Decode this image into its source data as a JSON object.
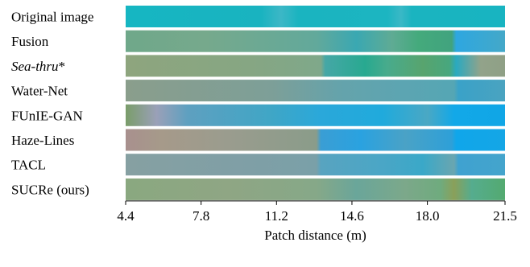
{
  "chart_data": {
    "type": "heatmap",
    "title": "",
    "xlabel": "Patch distance (m)",
    "ylabel": "",
    "xlim": [
      4.4,
      21.5
    ],
    "x_ticks": [
      "4.4",
      "7.8",
      "11.2",
      "14.6",
      "18.0",
      "21.5"
    ],
    "rows": [
      {
        "label": "Original image",
        "italic": false,
        "stops": [
          {
            "x": 4.4,
            "color": "#16b6c2"
          },
          {
            "x": 10.5,
            "color": "#19b3c0"
          },
          {
            "x": 11.4,
            "color": "#3cb7c6"
          },
          {
            "x": 12.2,
            "color": "#1ab4c0"
          },
          {
            "x": 16.2,
            "color": "#1cb5c1"
          },
          {
            "x": 16.8,
            "color": "#3ab8c6"
          },
          {
            "x": 17.3,
            "color": "#1ab4c0"
          },
          {
            "x": 21.5,
            "color": "#18b4c1"
          }
        ]
      },
      {
        "label": "Fusion",
        "italic": false,
        "stops": [
          {
            "x": 4.4,
            "color": "#6fa88a"
          },
          {
            "x": 8.0,
            "color": "#76a98c"
          },
          {
            "x": 13.0,
            "color": "#62a99b"
          },
          {
            "x": 14.8,
            "color": "#3aa8b2"
          },
          {
            "x": 16.4,
            "color": "#5fab94"
          },
          {
            "x": 17.6,
            "color": "#44aa7c"
          },
          {
            "x": 19.1,
            "color": "#41a37e"
          },
          {
            "x": 19.3,
            "color": "#2ea7e0"
          },
          {
            "x": 21.5,
            "color": "#44a8c8"
          }
        ]
      },
      {
        "label": "Sea-thru*",
        "italic": true,
        "stops": [
          {
            "x": 4.4,
            "color": "#8ea57e"
          },
          {
            "x": 10.0,
            "color": "#86a683"
          },
          {
            "x": 13.2,
            "color": "#7fa88a"
          },
          {
            "x": 13.4,
            "color": "#45a7a6"
          },
          {
            "x": 15.2,
            "color": "#28a990"
          },
          {
            "x": 16.2,
            "color": "#48ab8c"
          },
          {
            "x": 17.8,
            "color": "#58a46e"
          },
          {
            "x": 19.0,
            "color": "#47a77e"
          },
          {
            "x": 19.3,
            "color": "#2aa9c0"
          },
          {
            "x": 20.4,
            "color": "#92a38a"
          },
          {
            "x": 21.5,
            "color": "#8fa086"
          }
        ]
      },
      {
        "label": "Water-Net",
        "italic": false,
        "stops": [
          {
            "x": 4.4,
            "color": "#8a9e8c"
          },
          {
            "x": 11.0,
            "color": "#7d9f98"
          },
          {
            "x": 14.0,
            "color": "#65a3ab"
          },
          {
            "x": 17.0,
            "color": "#5ca5b2"
          },
          {
            "x": 19.2,
            "color": "#55a6b4"
          },
          {
            "x": 19.4,
            "color": "#3aa2c8"
          },
          {
            "x": 21.5,
            "color": "#4aa3c0"
          }
        ]
      },
      {
        "label": "FUnIE-GAN",
        "italic": false,
        "stops": [
          {
            "x": 4.4,
            "color": "#7a9d6a"
          },
          {
            "x": 5.8,
            "color": "#9aa0b8"
          },
          {
            "x": 7.2,
            "color": "#5ea0c0"
          },
          {
            "x": 11.0,
            "color": "#3fa6c6"
          },
          {
            "x": 13.2,
            "color": "#2aa8da"
          },
          {
            "x": 16.0,
            "color": "#20aadc"
          },
          {
            "x": 18.0,
            "color": "#4aa8c4"
          },
          {
            "x": 19.2,
            "color": "#12a8e8"
          },
          {
            "x": 21.5,
            "color": "#10a6e6"
          }
        ]
      },
      {
        "label": "Haze-Lines",
        "italic": false,
        "stops": [
          {
            "x": 4.4,
            "color": "#a8908e"
          },
          {
            "x": 6.0,
            "color": "#a69a8a"
          },
          {
            "x": 9.0,
            "color": "#9a9c8e"
          },
          {
            "x": 13.0,
            "color": "#8a9c8a"
          },
          {
            "x": 13.2,
            "color": "#3a9ed4"
          },
          {
            "x": 15.0,
            "color": "#2aa2e0"
          },
          {
            "x": 17.0,
            "color": "#4aa2c6"
          },
          {
            "x": 19.1,
            "color": "#2ea0d8"
          },
          {
            "x": 19.3,
            "color": "#10a6ea"
          },
          {
            "x": 21.5,
            "color": "#14a6e6"
          }
        ]
      },
      {
        "label": "TACL",
        "italic": false,
        "stops": [
          {
            "x": 4.4,
            "color": "#86a0a2"
          },
          {
            "x": 10.0,
            "color": "#7f9fa6"
          },
          {
            "x": 13.0,
            "color": "#7aa0a8"
          },
          {
            "x": 13.2,
            "color": "#58a4c0"
          },
          {
            "x": 16.0,
            "color": "#4aa6c6"
          },
          {
            "x": 17.8,
            "color": "#3aa8c8"
          },
          {
            "x": 19.2,
            "color": "#6aa6b0"
          },
          {
            "x": 19.4,
            "color": "#3fa2d0"
          },
          {
            "x": 21.5,
            "color": "#44a4cc"
          }
        ]
      },
      {
        "label": "SUCRe (ours)",
        "italic": false,
        "stops": [
          {
            "x": 4.4,
            "color": "#8aa880"
          },
          {
            "x": 9.0,
            "color": "#8fa684"
          },
          {
            "x": 13.0,
            "color": "#86a888"
          },
          {
            "x": 14.8,
            "color": "#6aa69a"
          },
          {
            "x": 17.0,
            "color": "#7ca88a"
          },
          {
            "x": 18.6,
            "color": "#6fab7e"
          },
          {
            "x": 19.2,
            "color": "#8aa05a"
          },
          {
            "x": 20.0,
            "color": "#55ac8e"
          },
          {
            "x": 21.5,
            "color": "#54aa70"
          }
        ]
      }
    ]
  }
}
